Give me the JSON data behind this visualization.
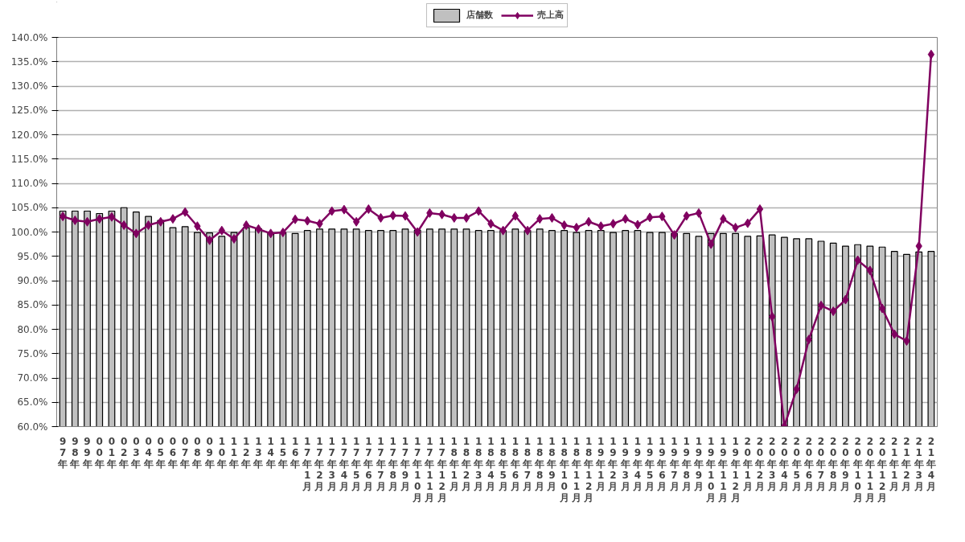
{
  "chart_data": {
    "type": "bar",
    "categories": [
      "97年",
      "98年",
      "99年",
      "00年",
      "01年",
      "02年",
      "03年",
      "04年",
      "05年",
      "06年",
      "07年",
      "08年",
      "09年",
      "10年",
      "11年",
      "12年",
      "13年",
      "14年",
      "15年",
      "16年",
      "17年1月",
      "17年2月",
      "17年3月",
      "17年4月",
      "17年5月",
      "17年6月",
      "17年7月",
      "17年8月",
      "17年9月",
      "17年10月",
      "17年11月",
      "17年12月",
      "18年1月",
      "18年2月",
      "18年3月",
      "18年4月",
      "18年5月",
      "18年6月",
      "18年7月",
      "18年8月",
      "18年9月",
      "18年10月",
      "18年11月",
      "18年12月",
      "19年1月",
      "19年2月",
      "19年3月",
      "19年4月",
      "19年5月",
      "19年6月",
      "19年7月",
      "19年8月",
      "19年9月",
      "19年10月",
      "19年11月",
      "19年12月",
      "20年1月",
      "20年2月",
      "20年3月",
      "20年4月",
      "20年5月",
      "20年6月",
      "20年7月",
      "20年8月",
      "20年9月",
      "20年10月",
      "20年11月",
      "20年12月",
      "21年1月",
      "21年2月",
      "21年3月",
      "21年4月"
    ],
    "series": [
      {
        "name": "店舗数",
        "color": "#c0c0c0",
        "values": [
          104.3,
          104.3,
          104.3,
          103.8,
          104.3,
          105.0,
          104.1,
          103.2,
          102.4,
          100.9,
          101.1,
          99.9,
          99.8,
          99.1,
          99.9,
          100.9,
          100.7,
          99.7,
          99.9,
          99.7,
          100.3,
          100.6,
          100.6,
          100.6,
          100.6,
          100.3,
          100.3,
          100.3,
          100.6,
          100.4,
          100.6,
          100.6,
          100.6,
          100.6,
          100.3,
          100.3,
          100.3,
          100.6,
          100.3,
          100.6,
          100.3,
          100.3,
          99.9,
          100.3,
          100.3,
          99.9,
          100.3,
          100.3,
          99.9,
          99.9,
          99.7,
          99.7,
          99.1,
          99.7,
          99.7,
          99.7,
          99.1,
          99.2,
          99.4,
          98.9,
          98.6,
          98.6,
          98.1,
          97.7,
          97.1,
          97.4,
          97.1,
          96.9,
          96.0,
          95.4,
          95.9,
          96.0
        ]
      },
      {
        "name": "売上高",
        "type": "line",
        "color": "#800060",
        "values": [
          103.2,
          102.4,
          102.1,
          102.7,
          103.1,
          101.4,
          99.7,
          101.4,
          102.1,
          102.7,
          104.1,
          101.2,
          98.3,
          100.3,
          98.6,
          101.4,
          100.6,
          99.7,
          99.9,
          102.6,
          102.3,
          101.7,
          104.3,
          104.6,
          102.1,
          104.7,
          102.9,
          103.4,
          103.3,
          100.0,
          103.9,
          103.6,
          102.9,
          102.9,
          104.3,
          101.7,
          100.3,
          103.3,
          100.3,
          102.7,
          102.9,
          101.4,
          100.9,
          102.1,
          101.2,
          101.7,
          102.7,
          101.5,
          103.0,
          103.2,
          99.4,
          103.3,
          103.9,
          97.5,
          102.7,
          100.9,
          101.8,
          104.7,
          82.6,
          60.1,
          67.7,
          77.9,
          84.9,
          83.7,
          86.1,
          94.2,
          92.1,
          84.3,
          79.0,
          77.6,
          97.1,
          136.5
        ]
      }
    ],
    "ylim": [
      60,
      140
    ],
    "yticks": [
      {
        "value": 60,
        "label": "60.0%"
      },
      {
        "value": 65,
        "label": "65.0%"
      },
      {
        "value": 70,
        "label": "70.0%"
      },
      {
        "value": 75,
        "label": "75.0%"
      },
      {
        "value": 80,
        "label": "80.0%"
      },
      {
        "value": 85,
        "label": "85.0%"
      },
      {
        "value": 90,
        "label": "90.0%"
      },
      {
        "value": 95,
        "label": "95.0%"
      },
      {
        "value": 100,
        "label": "100.0%"
      },
      {
        "value": 105,
        "label": "105.0%"
      },
      {
        "value": 110,
        "label": "110.0%"
      },
      {
        "value": 115,
        "label": "115.0%"
      },
      {
        "value": 120,
        "label": "120.0%"
      },
      {
        "value": 125,
        "label": "125.0%"
      },
      {
        "value": 130,
        "label": "130.0%"
      },
      {
        "value": 135,
        "label": "135.0%"
      },
      {
        "value": 140,
        "label": "140.0%"
      }
    ],
    "grid": "y",
    "legend": "top",
    "marker": "diamond",
    "line_style": "solid"
  }
}
